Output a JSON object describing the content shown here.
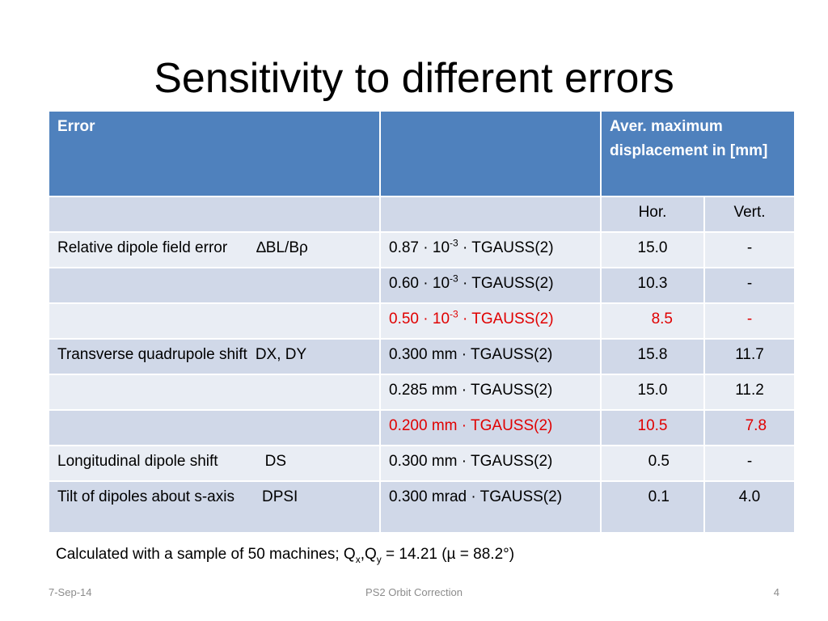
{
  "title": "Sensitivity to different errors",
  "table": {
    "header": {
      "col1": "Error",
      "col2": "",
      "col3": "Aver. maximum displacement in [mm]"
    },
    "subheader": {
      "hor": "Hor.",
      "vert": "Vert."
    },
    "rows": [
      {
        "error": "Relative dipole field error",
        "symbol": "∆BL/Bρ",
        "coef": "0.87",
        "exp": "-3",
        "dist": "TGAUSS(2)",
        "hor": "15.0",
        "vert": "-",
        "highlight": false
      },
      {
        "error": "",
        "symbol": "",
        "coef": "0.60",
        "exp": "-3",
        "dist": "TGAUSS(2)",
        "hor": "10.3",
        "vert": "-",
        "highlight": false
      },
      {
        "error": "",
        "symbol": "",
        "coef": "0.50",
        "exp": "-3",
        "dist": "TGAUSS(2)",
        "hor": "8.5",
        "vert": "-",
        "highlight": true
      },
      {
        "error": "Transverse quadrupole shift",
        "symbol": "DX, DY",
        "amount": "0.300 mm",
        "dist": "TGAUSS(2)",
        "hor": "15.8",
        "vert": "11.7",
        "highlight": false
      },
      {
        "error": "",
        "symbol": "",
        "amount": "0.285 mm",
        "dist": "TGAUSS(2)",
        "hor": "15.0",
        "vert": "11.2",
        "highlight": false
      },
      {
        "error": "",
        "symbol": "",
        "amount": "0.200 mm",
        "dist": "TGAUSS(2)",
        "hor": "10.5",
        "vert": "7.8",
        "highlight": true
      },
      {
        "error": "Longitudinal dipole shift",
        "symbol": "DS",
        "amount": "0.300 mm",
        "dist": "TGAUSS(2)",
        "hor": "0.5",
        "vert": "-",
        "highlight": false
      },
      {
        "error": "Tilt of dipoles about s-axis",
        "symbol": "DPSI",
        "amount": "0.300 mrad",
        "dist": "TGAUSS(2)",
        "hor": "0.1",
        "vert": "4.0",
        "highlight": false
      }
    ],
    "dot": "·",
    "ten": "10"
  },
  "note": {
    "prefix": "Calculated with a sample of 50 machines; Q",
    "sub_x": "x",
    "comma": ",Q",
    "sub_y": "y",
    "suffix": " = 14.21 (µ = 88.2°)"
  },
  "footer": {
    "date": "7-Sep-14",
    "center": "PS2 Orbit Correction",
    "page": "4"
  },
  "colors": {
    "header_bg": "#4f81bd",
    "row_dark": "#d0d8e8",
    "row_light": "#e9edf4",
    "highlight": "#e00000"
  }
}
